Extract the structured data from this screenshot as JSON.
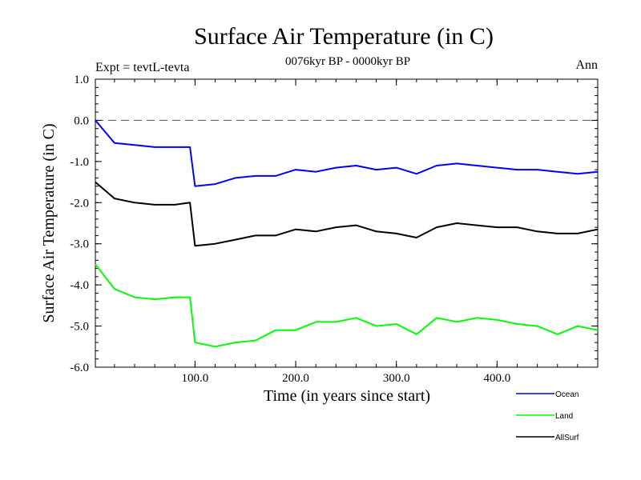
{
  "title": "Surface Air Temperature (in C)",
  "subtitle": "0076kyr BP - 0000kyr BP",
  "expt_label": "Expt = tevtL-tevta",
  "season_label": "Ann",
  "chart_data": {
    "type": "line",
    "xlabel": "Time (in years since start)",
    "ylabel": "Surface Air Temperature (in C)",
    "xlim": [
      1,
      500
    ],
    "ylim": [
      -6.0,
      1.0
    ],
    "xticks": [
      100,
      200,
      300,
      400
    ],
    "xtick_labels": [
      "100.0",
      "200.0",
      "300.0",
      "400.0"
    ],
    "yticks": [
      1.0,
      0.0,
      -1.0,
      -2.0,
      -3.0,
      -4.0,
      -5.0,
      -6.0
    ],
    "ytick_labels": [
      "1.0",
      "0.0",
      "-1.0",
      "-2.0",
      "-3.0",
      "-4.0",
      "-5.0",
      "-6.0"
    ],
    "reference_line": 0.0,
    "grid": false,
    "legend_position": "bottom-right, below plot",
    "x": [
      1,
      20,
      40,
      60,
      80,
      95,
      100,
      120,
      140,
      160,
      180,
      200,
      220,
      240,
      260,
      280,
      300,
      320,
      340,
      360,
      380,
      400,
      420,
      440,
      460,
      480,
      500
    ],
    "series": [
      {
        "name": "Ocean",
        "color": "#0000ff",
        "values": [
          0.0,
          -0.55,
          -0.6,
          -0.65,
          -0.65,
          -0.65,
          -1.6,
          -1.55,
          -1.4,
          -1.35,
          -1.35,
          -1.2,
          -1.25,
          -1.15,
          -1.1,
          -1.2,
          -1.15,
          -1.3,
          -1.1,
          -1.05,
          -1.1,
          -1.15,
          -1.2,
          -1.2,
          -1.25,
          -1.3,
          -1.25
        ]
      },
      {
        "name": "Land",
        "color": "#00ff00",
        "values": [
          -3.5,
          -4.1,
          -4.3,
          -4.35,
          -4.3,
          -4.3,
          -5.4,
          -5.5,
          -5.4,
          -5.35,
          -5.1,
          -5.1,
          -4.9,
          -4.9,
          -4.8,
          -5.0,
          -4.95,
          -5.2,
          -4.8,
          -4.9,
          -4.8,
          -4.85,
          -4.95,
          -5.0,
          -5.2,
          -5.0,
          -5.1
        ]
      },
      {
        "name": "AllSurf",
        "color": "#000000",
        "values": [
          -1.5,
          -1.9,
          -2.0,
          -2.05,
          -2.05,
          -2.0,
          -3.05,
          -3.0,
          -2.9,
          -2.8,
          -2.8,
          -2.65,
          -2.7,
          -2.6,
          -2.55,
          -2.7,
          -2.75,
          -2.85,
          -2.6,
          -2.5,
          -2.55,
          -2.6,
          -2.6,
          -2.7,
          -2.75,
          -2.75,
          -2.65
        ]
      }
    ]
  }
}
